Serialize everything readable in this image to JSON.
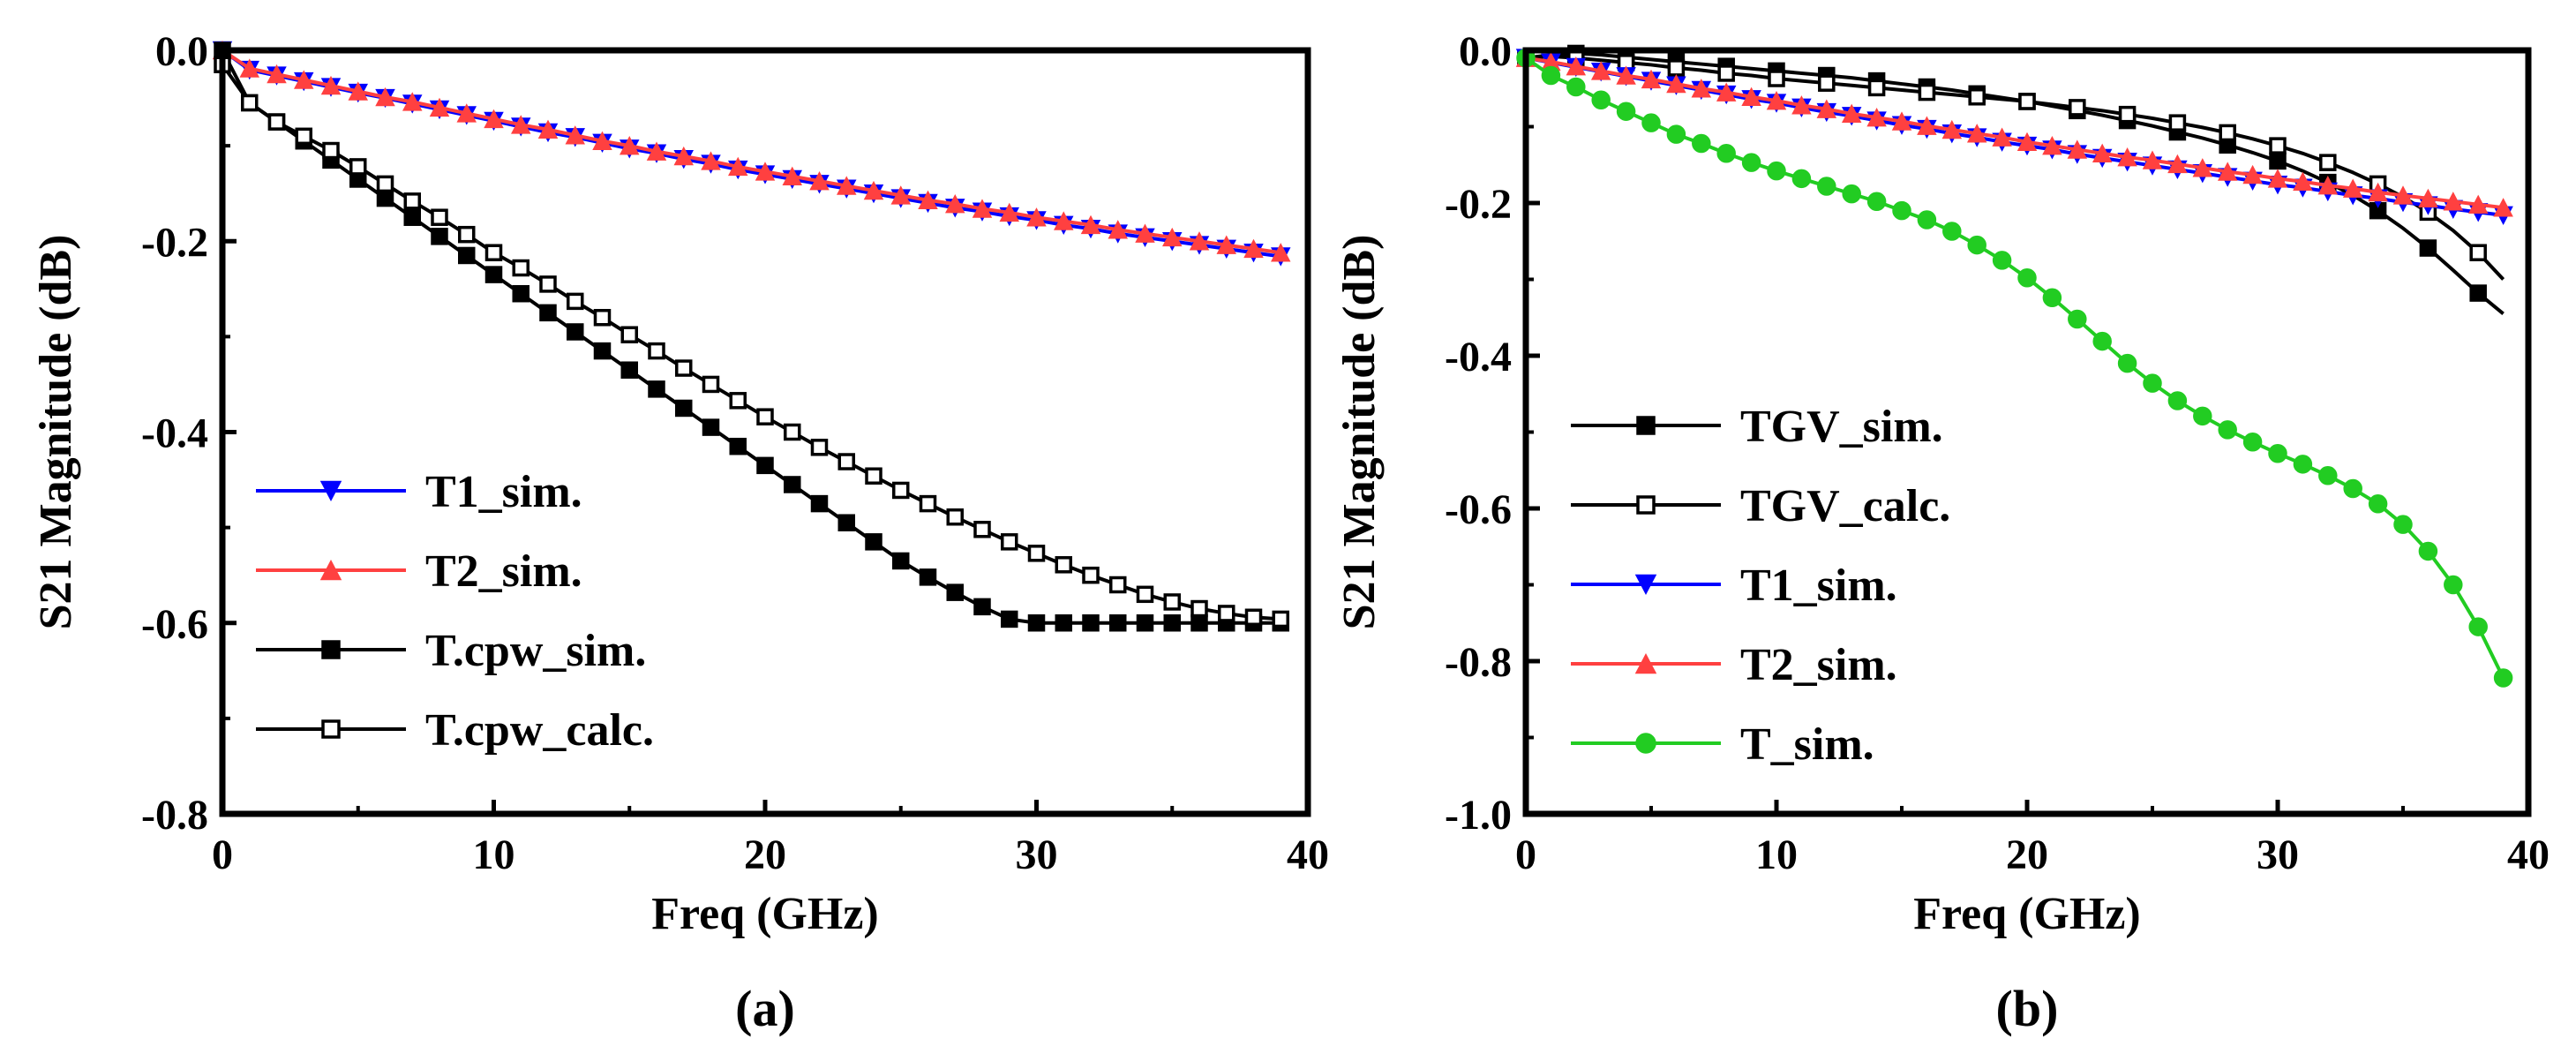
{
  "figure": {
    "background": "#ffffff",
    "axis_color": "#000000"
  },
  "chart_data": [
    {
      "panel_label": "(a)",
      "type": "line",
      "xlabel": "Freq (GHz)",
      "ylabel": "S21 Magnitude (dB)",
      "xlim": [
        0,
        40
      ],
      "ylim": [
        -0.8,
        0
      ],
      "xticks": [
        0,
        10,
        20,
        30,
        40
      ],
      "xtick_labels": [
        "0",
        "10",
        "20",
        "30",
        "40"
      ],
      "yticks": [
        0,
        -0.2,
        -0.4,
        -0.6,
        -0.8
      ],
      "ytick_labels": [
        "0.0",
        "-0.2",
        "-0.4",
        "-0.6",
        "-0.8"
      ],
      "legend_position": "lower-left",
      "series": [
        {
          "name": "T1_sim.",
          "color": "#0000ff",
          "marker": "triangle-down",
          "filled": true,
          "x_start": 0,
          "x_step": 1,
          "every_point_marker": true,
          "values": [
            0,
            -0.0205,
            -0.0265,
            -0.0325,
            -0.0385,
            -0.0445,
            -0.05,
            -0.056,
            -0.062,
            -0.068,
            -0.074,
            -0.08,
            -0.086,
            -0.091,
            -0.097,
            -0.103,
            -0.108,
            -0.114,
            -0.119,
            -0.125,
            -0.13,
            -0.135,
            -0.14,
            -0.145,
            -0.15,
            -0.155,
            -0.16,
            -0.165,
            -0.169,
            -0.174,
            -0.178,
            -0.183,
            -0.187,
            -0.192,
            -0.196,
            -0.2,
            -0.204,
            -0.208,
            -0.212,
            -0.216
          ]
        },
        {
          "name": "T2_sim.",
          "color": "#ff4040",
          "marker": "triangle-up",
          "filled": true,
          "x_start": 0,
          "x_step": 1,
          "every_point_marker": true,
          "values": [
            0,
            -0.019,
            -0.025,
            -0.031,
            -0.037,
            -0.043,
            -0.049,
            -0.054,
            -0.06,
            -0.066,
            -0.072,
            -0.078,
            -0.083,
            -0.089,
            -0.095,
            -0.1,
            -0.106,
            -0.111,
            -0.116,
            -0.122,
            -0.127,
            -0.132,
            -0.137,
            -0.142,
            -0.147,
            -0.152,
            -0.157,
            -0.161,
            -0.166,
            -0.17,
            -0.175,
            -0.179,
            -0.183,
            -0.188,
            -0.192,
            -0.196,
            -0.2,
            -0.204,
            -0.208,
            -0.212
          ]
        },
        {
          "name": "T.cpw_sim.",
          "color": "#000000",
          "marker": "square",
          "filled": true,
          "x_start": 0,
          "x_step": 1,
          "every_point_marker": true,
          "values": [
            0,
            -0.055,
            -0.075,
            -0.095,
            -0.115,
            -0.135,
            -0.155,
            -0.175,
            -0.195,
            -0.215,
            -0.235,
            -0.255,
            -0.275,
            -0.295,
            -0.315,
            -0.335,
            -0.355,
            -0.375,
            -0.395,
            -0.415,
            -0.435,
            -0.455,
            -0.475,
            -0.495,
            -0.515,
            -0.535,
            -0.552,
            -0.568,
            -0.583,
            -0.596,
            -0.6,
            -0.6,
            -0.6,
            -0.6,
            -0.6,
            -0.6,
            -0.6,
            -0.6,
            -0.6,
            -0.6
          ]
        },
        {
          "name": "T.cpw_calc.",
          "color": "#000000",
          "marker": "square",
          "filled": false,
          "x_start": 0,
          "x_step": 1,
          "every_point_marker": true,
          "values": [
            -0.015,
            -0.055,
            -0.075,
            -0.09,
            -0.105,
            -0.122,
            -0.14,
            -0.158,
            -0.175,
            -0.193,
            -0.212,
            -0.228,
            -0.245,
            -0.263,
            -0.28,
            -0.298,
            -0.315,
            -0.333,
            -0.35,
            -0.367,
            -0.384,
            -0.4,
            -0.416,
            -0.431,
            -0.446,
            -0.461,
            -0.475,
            -0.489,
            -0.502,
            -0.515,
            -0.527,
            -0.539,
            -0.55,
            -0.56,
            -0.57,
            -0.578,
            -0.585,
            -0.59,
            -0.594,
            -0.596
          ]
        }
      ]
    },
    {
      "panel_label": "(b)",
      "type": "line",
      "xlabel": "Freq (GHz)",
      "ylabel": "S21 Magnitude (dB)",
      "xlim": [
        0,
        40
      ],
      "ylim": [
        -1.0,
        0
      ],
      "xticks": [
        0,
        10,
        20,
        30,
        40
      ],
      "xtick_labels": [
        "0",
        "10",
        "20",
        "30",
        "40"
      ],
      "yticks": [
        0,
        -0.2,
        -0.4,
        -0.6,
        -0.8,
        -1.0
      ],
      "ytick_labels": [
        "0.0",
        "-0.2",
        "-0.4",
        "-0.6",
        "-0.8",
        "-1.0"
      ],
      "legend_position": "lower-left",
      "series": [
        {
          "name": "TGV_sim.",
          "color": "#000000",
          "marker": "square",
          "filled": true,
          "x_start": 0,
          "x_step": 1,
          "every_point_marker": false,
          "values": [
            -0.01,
            -0.006,
            -0.004,
            -0.006,
            -0.009,
            -0.012,
            -0.015,
            -0.018,
            -0.021,
            -0.024,
            -0.027,
            -0.03,
            -0.033,
            -0.036,
            -0.04,
            -0.044,
            -0.048,
            -0.052,
            -0.057,
            -0.062,
            -0.067,
            -0.073,
            -0.079,
            -0.085,
            -0.092,
            -0.099,
            -0.107,
            -0.115,
            -0.124,
            -0.134,
            -0.145,
            -0.158,
            -0.173,
            -0.19,
            -0.21,
            -0.233,
            -0.259,
            -0.288,
            -0.318,
            -0.345
          ]
        },
        {
          "name": "TGV_calc.",
          "color": "#000000",
          "marker": "square",
          "filled": false,
          "x_start": 0,
          "x_step": 1,
          "every_point_marker": false,
          "values": [
            -0.01,
            -0.008,
            -0.01,
            -0.013,
            -0.016,
            -0.019,
            -0.023,
            -0.026,
            -0.03,
            -0.033,
            -0.037,
            -0.04,
            -0.043,
            -0.046,
            -0.049,
            -0.052,
            -0.055,
            -0.058,
            -0.061,
            -0.064,
            -0.067,
            -0.071,
            -0.075,
            -0.079,
            -0.084,
            -0.089,
            -0.095,
            -0.101,
            -0.108,
            -0.116,
            -0.125,
            -0.135,
            -0.147,
            -0.16,
            -0.175,
            -0.192,
            -0.212,
            -0.236,
            -0.265,
            -0.3
          ]
        },
        {
          "name": "T1_sim.",
          "color": "#0000ff",
          "marker": "triangle-down",
          "filled": true,
          "x_start": 0,
          "x_step": 1,
          "every_point_marker": true,
          "values": [
            -0.01,
            -0.016,
            -0.022,
            -0.028,
            -0.034,
            -0.04,
            -0.046,
            -0.052,
            -0.058,
            -0.064,
            -0.069,
            -0.075,
            -0.081,
            -0.086,
            -0.092,
            -0.098,
            -0.103,
            -0.109,
            -0.114,
            -0.12,
            -0.125,
            -0.13,
            -0.136,
            -0.141,
            -0.146,
            -0.151,
            -0.156,
            -0.161,
            -0.166,
            -0.171,
            -0.176,
            -0.18,
            -0.185,
            -0.19,
            -0.194,
            -0.199,
            -0.203,
            -0.208,
            -0.212,
            -0.216
          ]
        },
        {
          "name": "T2_sim.",
          "color": "#ff4040",
          "marker": "triangle-up",
          "filled": true,
          "x_start": 0,
          "x_step": 1,
          "every_point_marker": true,
          "values": [
            -0.01,
            -0.015,
            -0.021,
            -0.027,
            -0.033,
            -0.038,
            -0.044,
            -0.05,
            -0.055,
            -0.061,
            -0.066,
            -0.072,
            -0.077,
            -0.083,
            -0.088,
            -0.093,
            -0.099,
            -0.104,
            -0.109,
            -0.114,
            -0.12,
            -0.125,
            -0.13,
            -0.135,
            -0.14,
            -0.144,
            -0.149,
            -0.154,
            -0.159,
            -0.163,
            -0.168,
            -0.172,
            -0.177,
            -0.181,
            -0.186,
            -0.19,
            -0.194,
            -0.198,
            -0.202,
            -0.206
          ]
        },
        {
          "name": "T_sim.",
          "color": "#22cc22",
          "marker": "circle",
          "filled": true,
          "x_start": 0,
          "x_step": 1,
          "every_point_marker": true,
          "values": [
            -0.01,
            -0.033,
            -0.048,
            -0.065,
            -0.08,
            -0.095,
            -0.11,
            -0.122,
            -0.135,
            -0.147,
            -0.158,
            -0.168,
            -0.178,
            -0.188,
            -0.198,
            -0.21,
            -0.222,
            -0.237,
            -0.255,
            -0.275,
            -0.298,
            -0.324,
            -0.352,
            -0.381,
            -0.41,
            -0.436,
            -0.459,
            -0.479,
            -0.497,
            -0.513,
            -0.528,
            -0.542,
            -0.557,
            -0.574,
            -0.594,
            -0.621,
            -0.656,
            -0.7,
            -0.755,
            -0.822
          ]
        }
      ]
    }
  ]
}
